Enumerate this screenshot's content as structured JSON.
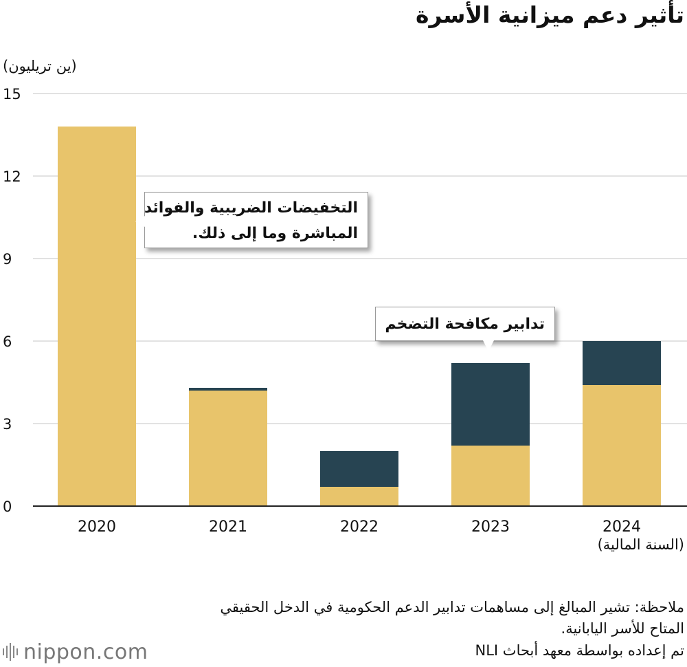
{
  "title": "تأثير دعم ميزانية الأسرة",
  "y_unit_label": "(ين تريليون)",
  "x_unit_label": "(السنة المالية)",
  "note": "ملاحظة: تشير المبالغ إلى مساهمات تدابير الدعم الحكومية في الدخل الحقيقي المتاح للأسر اليابانية.",
  "source": "تم إعداده بواسطة معهد أبحاث NLI",
  "logo": {
    "text": "nippon.com"
  },
  "callouts": {
    "tax": {
      "line1": "التخفيضات الضريبية والفوائد",
      "line2": "المباشرة وما إلى ذلك."
    },
    "inflation": {
      "text": "تدابير مكافحة التضخم"
    }
  },
  "colors": {
    "tax": "#E8C46B",
    "inflation": "#274452",
    "grid": "#d9d9d9",
    "axis": "#222222"
  },
  "chart_data": {
    "type": "bar",
    "stacked": true,
    "categories": [
      "2020",
      "2021",
      "2022",
      "2023",
      "2024"
    ],
    "series": [
      {
        "name": "التخفيضات الضريبية والفوائد المباشرة وما إلى ذلك.",
        "values": [
          13.8,
          4.2,
          0.7,
          2.2,
          4.4
        ]
      },
      {
        "name": "تدابير مكافحة التضخم",
        "values": [
          0,
          0.1,
          1.3,
          3.0,
          1.6
        ]
      }
    ],
    "yticks": [
      "0",
      "3",
      "6",
      "9",
      "12",
      "15"
    ],
    "ylim": [
      0,
      15
    ],
    "grid": true
  }
}
